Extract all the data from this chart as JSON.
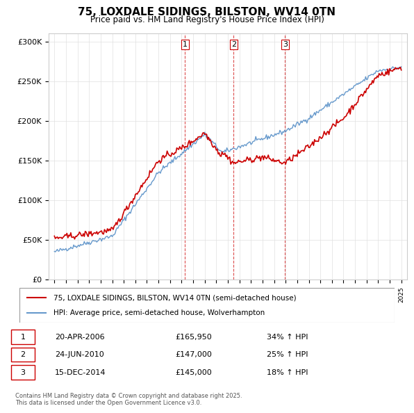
{
  "title": "75, LOXDALE SIDINGS, BILSTON, WV14 0TN",
  "subtitle": "Price paid vs. HM Land Registry's House Price Index (HPI)",
  "ylabel": "",
  "background_color": "#ffffff",
  "plot_bg_color": "#ffffff",
  "grid_color": "#e0e0e0",
  "red_line_color": "#cc0000",
  "blue_line_color": "#6699cc",
  "legend_entries": [
    "75, LOXDALE SIDINGS, BILSTON, WV14 0TN (semi-detached house)",
    "HPI: Average price, semi-detached house, Wolverhampton"
  ],
  "transactions": [
    {
      "label": "1",
      "date": "20-APR-2006",
      "price": "£165,950",
      "hpi": "34% ↑ HPI",
      "year": 2006.3
    },
    {
      "label": "2",
      "date": "24-JUN-2010",
      "price": "£147,000",
      "hpi": "25% ↑ HPI",
      "year": 2010.5
    },
    {
      "label": "3",
      "date": "15-DEC-2014",
      "price": "£145,000",
      "hpi": "18% ↑ HPI",
      "year": 2014.95
    }
  ],
  "footnote": "Contains HM Land Registry data © Crown copyright and database right 2025.\nThis data is licensed under the Open Government Licence v3.0.",
  "ylim": [
    0,
    310000
  ],
  "xlim_start": 1994.5,
  "xlim_end": 2025.5
}
